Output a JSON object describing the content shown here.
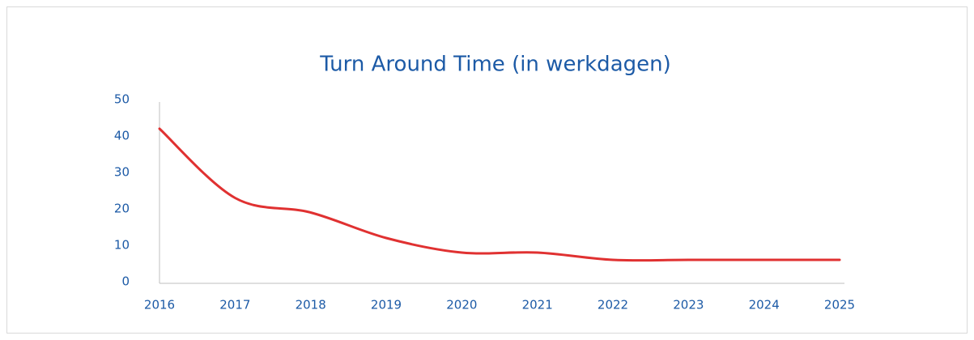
{
  "chart_data": {
    "type": "line",
    "title": "Turn Around Time (in werkdagen)",
    "categories": [
      "2016",
      "2017",
      "2018",
      "2019",
      "2020",
      "2021",
      "2022",
      "2023",
      "2024",
      "2025"
    ],
    "values": [
      42,
      23,
      19,
      12,
      8,
      8,
      6,
      6,
      6,
      6
    ],
    "color": "#e03131",
    "smooth": true,
    "ylim": [
      0,
      50
    ],
    "yticks": [
      0,
      10,
      20,
      30,
      40,
      50
    ],
    "grid": false
  }
}
